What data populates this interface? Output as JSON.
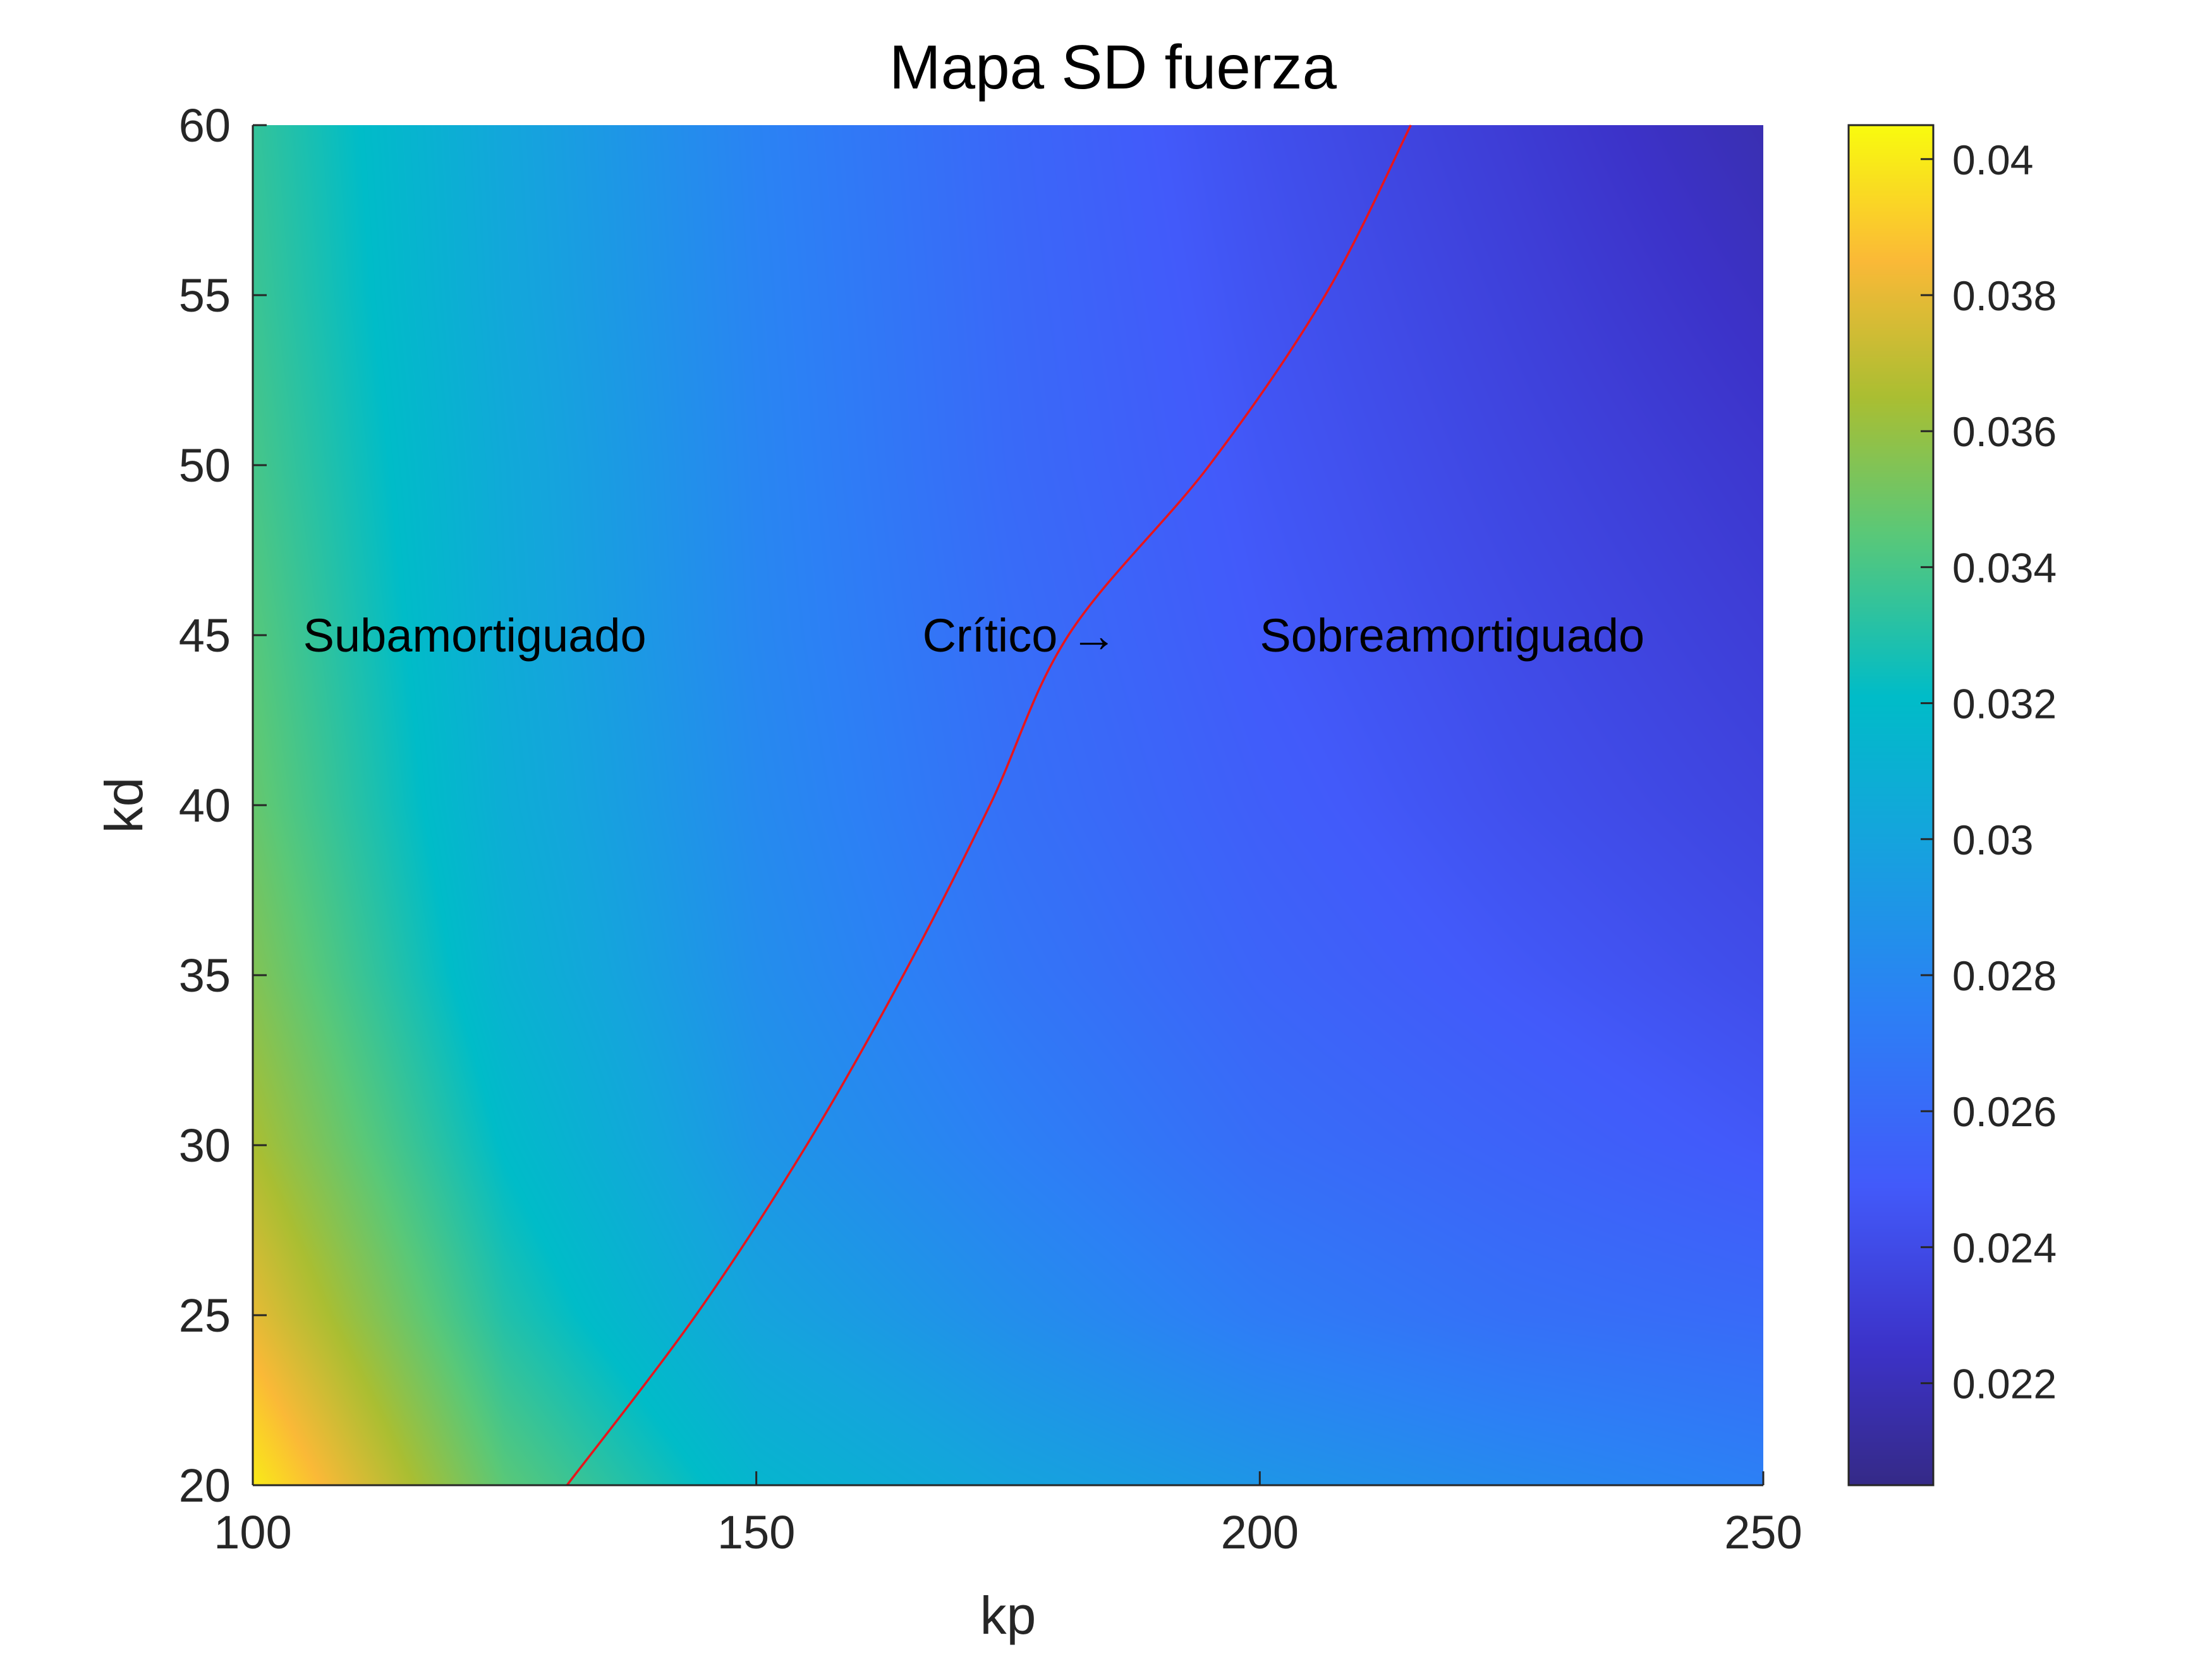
{
  "chart_data": {
    "type": "heatmap",
    "title": "Mapa SD fuerza",
    "xlabel": "kp",
    "ylabel": "kd",
    "xlim": [
      100,
      250
    ],
    "ylim": [
      20,
      60
    ],
    "x_ticks": [
      100,
      150,
      200,
      250
    ],
    "y_ticks": [
      20,
      25,
      30,
      35,
      40,
      45,
      50,
      55,
      60
    ],
    "colorbar": {
      "lim": [
        0.0205,
        0.0405
      ],
      "ticks": [
        0.022,
        0.024,
        0.026,
        0.028,
        0.03,
        0.032,
        0.034,
        0.036,
        0.038,
        0.04
      ],
      "tick_labels": [
        "0.022",
        "0.024",
        "0.026",
        "0.028",
        "0.03",
        "0.032",
        "0.034",
        "0.036",
        "0.038",
        "0.04"
      ],
      "colormap": "parula"
    },
    "grid": {
      "kp": [
        100,
        125,
        150,
        175,
        200,
        225,
        250
      ],
      "kd": [
        20,
        25,
        30,
        35,
        40,
        45,
        50,
        55,
        60
      ],
      "z": [
        [
          0.04,
          0.0345,
          0.0315,
          0.03,
          0.029,
          0.0282,
          0.0275
        ],
        [
          0.038,
          0.033,
          0.03,
          0.0285,
          0.0272,
          0.0264,
          0.026
        ],
        [
          0.0365,
          0.032,
          0.029,
          0.0275,
          0.0262,
          0.0255,
          0.0248
        ],
        [
          0.0355,
          0.0312,
          0.0285,
          0.0268,
          0.0256,
          0.0248,
          0.0241
        ],
        [
          0.0348,
          0.0308,
          0.0282,
          0.0264,
          0.0252,
          0.0243,
          0.0236
        ],
        [
          0.0344,
          0.0306,
          0.028,
          0.0262,
          0.0249,
          0.024,
          0.0232
        ],
        [
          0.034,
          0.0305,
          0.0279,
          0.026,
          0.0247,
          0.0237,
          0.0228
        ],
        [
          0.0337,
          0.0303,
          0.0278,
          0.0259,
          0.0245,
          0.0234,
          0.0223
        ],
        [
          0.0335,
          0.0302,
          0.0277,
          0.0258,
          0.0243,
          0.0231,
          0.0218
        ]
      ]
    },
    "curve": {
      "name": "",
      "color": "#e8151b",
      "points": [
        [
          131.2,
          20
        ],
        [
          144.0,
          25
        ],
        [
          155.0,
          30
        ],
        [
          164.6,
          35
        ],
        [
          173.2,
          40
        ],
        [
          181.0,
          45
        ],
        [
          195.0,
          50
        ],
        [
          206.5,
          55
        ],
        [
          215.0,
          60
        ]
      ]
    },
    "annotations": [
      {
        "text": "Subamortiguado",
        "x": 105,
        "y": 45
      },
      {
        "text": "Crítico →",
        "x": 166.5,
        "y": 45
      },
      {
        "text": "Sobreamortiguado",
        "x": 200,
        "y": 45
      }
    ]
  }
}
